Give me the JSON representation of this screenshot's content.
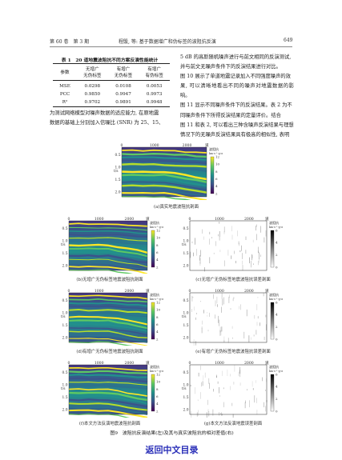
{
  "header": {
    "volume_issue": "第 60 卷　第 3 期",
    "running_title": "程骰, 等: 基于数据增广和伪标签的波阻抗反演",
    "page_number": "649"
  },
  "table": {
    "title": "表 1　20 道地震波阻抗不同方案反演性能统计",
    "columns": [
      "参数",
      "无增广\n无伪标签",
      "有增广\n无伪标签",
      "有增广\n有伪标签"
    ],
    "col_headers": {
      "param": "参数",
      "c1_l1": "无增广",
      "c1_l2": "无伪标签",
      "c2_l1": "有增广",
      "c2_l2": "无伪标签",
      "c3_l1": "有增广",
      "c3_l2": "有伪标签"
    },
    "rows": [
      {
        "param": "MSE",
        "c1": "0.0298",
        "c2": "0.0108",
        "c3": "0.0053"
      },
      {
        "param": "PCC",
        "c1": "0.9850",
        "c2": "0.9947",
        "c3": "0.9973"
      },
      {
        "param": "R²",
        "c1": "0.9702",
        "c2": "0.9891",
        "c3": "0.9948"
      }
    ]
  },
  "left_text": [
    "为测试网络模型对噪声数据的适应能力, 在原地震",
    "数据的基础上分别加入信噪比 (SNR) 为 25、15、"
  ],
  "right_text": [
    "5 dB 的高斯随机噪声进行与前文相同的反演测试,",
    "并与前文无噪声条件下的反演结果进行对比。",
    "图 10 展示了单道地震记录加入不同强度噪声的效",
    "果, 可以清晰地看出不同的噪声对地震数据的影响。",
    "图 11 显示不同噪声条件下的反演结果。表 2 为不",
    "同噪声条件下所得反演结果的定量评价。结合",
    "图 11 和表 2, 可以看出三种含噪声反演结果与理想",
    "情况下的无噪声反演结果具有极高的相似性, 表明"
  ],
  "figure": {
    "axis_x_ticks": [
      "0",
      "1000",
      "2000"
    ],
    "axis_x_unit": "道",
    "axis_y_ticks": [
      "0.5",
      "1.0",
      "1.5",
      "2.0"
    ],
    "axis_y_label": "t/s",
    "impedance_legend": {
      "title": "波阻抗",
      "unit": "km·s⁻¹·g·cm⁻³",
      "ticks": [
        "12",
        "10",
        "8",
        "6",
        "4",
        "2"
      ]
    },
    "residual_legend": {
      "title": "波阻抗",
      "unit": "km·s⁻¹·g·cm⁻³",
      "ticks": [
        "6",
        "4",
        "2",
        "0"
      ]
    },
    "panels": {
      "a": "(a)真实地震波阻抗剖面",
      "b": "(b)无增广无伪标签地震波阻抗剖面",
      "c": "(c)无增广无伪标签地震波阻抗误差剖面",
      "d": "(d)有增广无伪标签地震波阻抗剖面",
      "e": "(e)有增广无伪标签地震波阻抗误差剖面",
      "f": "(f)本文方法反演地震波阻抗剖面",
      "g": "(g)本文方法反演地震误差剖面"
    },
    "caption": "图9　波阻抗反演结果(左)及其与真实波阻抗的相对差值(右)"
  },
  "footer": {
    "link_label": "返回中文目录"
  },
  "colors": {
    "viridis_low": "#440154",
    "viridis_mid": "#21918c",
    "viridis_high": "#fde725",
    "link": "#2a2fb8"
  }
}
